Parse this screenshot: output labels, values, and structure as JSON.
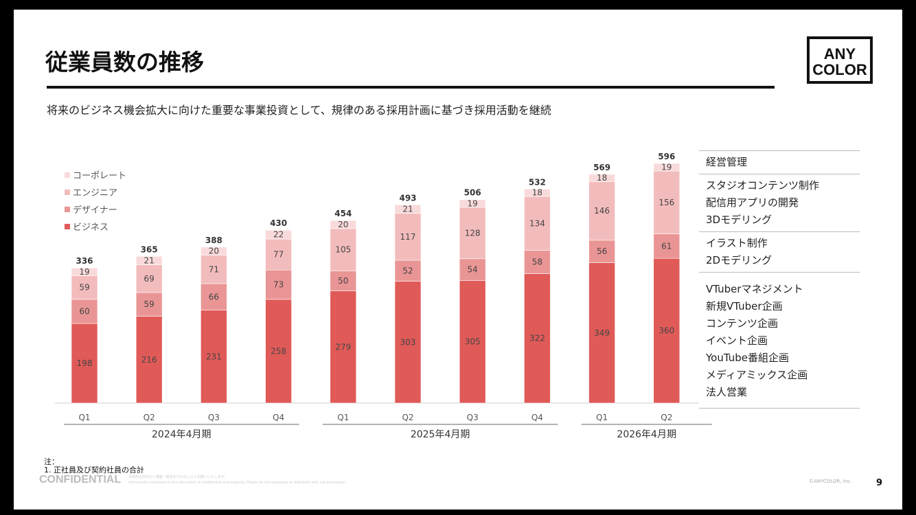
{
  "title": "従業員数の推移",
  "logo": {
    "line1": "ANY",
    "line2": "COLOR"
  },
  "subtitle": "将来のビジネス機会拡大に向けた重要な事業投資として、規律のある採用計画に基づき採用活動を継続",
  "chart_data": {
    "type": "bar",
    "stacked": true,
    "categories": [
      "Q1",
      "Q2",
      "Q3",
      "Q4",
      "Q1",
      "Q2",
      "Q3",
      "Q4",
      "Q1",
      "Q2"
    ],
    "groups": [
      {
        "label": "2024年4月期",
        "count": 4
      },
      {
        "label": "2025年4月期",
        "count": 4
      },
      {
        "label": "2026年4月期",
        "count": 2
      }
    ],
    "series": [
      {
        "name": "ビジネス",
        "color": "#e05a58",
        "values": [
          198,
          216,
          231,
          258,
          279,
          303,
          305,
          322,
          349,
          360
        ]
      },
      {
        "name": "デザイナー",
        "color": "#ea9595",
        "values": [
          60,
          59,
          66,
          73,
          50,
          52,
          54,
          58,
          56,
          61
        ]
      },
      {
        "name": "エンジニア",
        "color": "#f3bcbc",
        "values": [
          59,
          69,
          71,
          77,
          105,
          117,
          128,
          134,
          146,
          156
        ]
      },
      {
        "name": "コーポレート",
        "color": "#f9dada",
        "values": [
          19,
          21,
          20,
          22,
          20,
          21,
          19,
          18,
          18,
          19
        ]
      }
    ],
    "totals": [
      336,
      365,
      388,
      430,
      454,
      493,
      506,
      532,
      569,
      596
    ],
    "ylim": [
      0,
      600
    ]
  },
  "roles": [
    [
      "経営管理"
    ],
    [
      "スタジオコンテンツ制作",
      "配信用アプリの開発",
      "3Dモデリング"
    ],
    [
      "イラスト制作",
      "2Dモデリング"
    ],
    [
      "VTuberマネジメント",
      "新規VTuber企画",
      "コンテンツ企画",
      "イベント企画",
      "YouTube番組企画",
      "メディアミックス企画",
      "法人営業"
    ]
  ],
  "notes": {
    "head": "注：",
    "line1": "1. 正社員及び契約社員の合計"
  },
  "confidential": "CONFIDENTIAL",
  "disclaimer_jp": "本資料は許可なく複製・配布を行わないようお願いいたします。",
  "disclaimer_en": "Information contained in this document is confidential and property. Please do not reproduce or distribute with out permission.",
  "copyright": "©ANYCOLOR, Inc.",
  "page": "9"
}
